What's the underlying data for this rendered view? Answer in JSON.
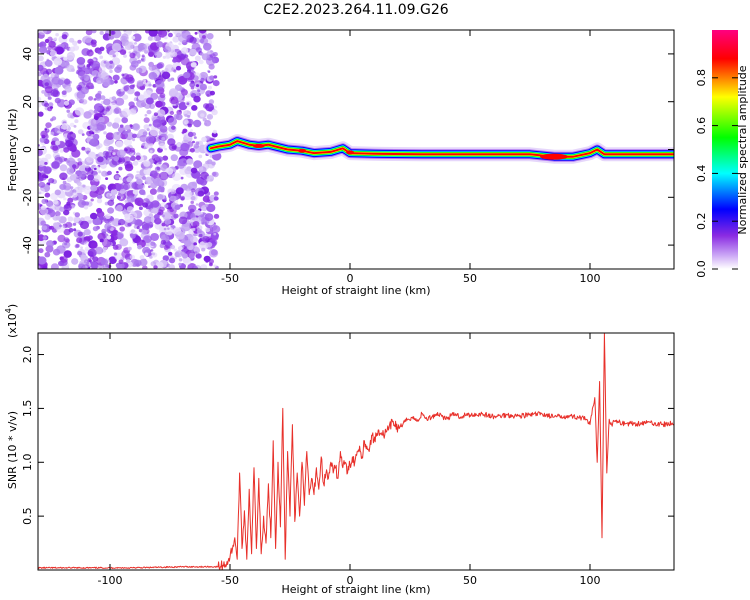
{
  "title": "C2E2.2023.264.11.09.G26",
  "chart_data": [
    {
      "type": "heatmap",
      "xlabel": "Height of straight line (km)",
      "ylabel": "Frequency (Hz)",
      "xlim": [
        -130,
        135
      ],
      "ylim": [
        -50,
        50
      ],
      "xticks": [
        -100,
        -50,
        0,
        50,
        100
      ],
      "xtick_labels": [
        "-100",
        "-50",
        "0",
        "50",
        "100"
      ],
      "yticks": [
        -40,
        -20,
        0,
        20,
        40
      ],
      "ytick_labels": [
        "-40",
        "-20",
        "0",
        "20",
        "40"
      ],
      "colorbar": {
        "label": "Normalized spectral amplitude",
        "range": [
          0,
          1
        ],
        "ticks": [
          0.0,
          0.2,
          0.4,
          0.6,
          0.8
        ],
        "tick_labels": [
          "0.0",
          "0.2",
          "0.4",
          "0.6",
          "0.8"
        ],
        "colormap": [
          "#ffffff",
          "#8a2be2",
          "#0000ff",
          "#00ffff",
          "#00ff00",
          "#ffff00",
          "#ff0000",
          "#ff0080"
        ]
      },
      "noise_region": {
        "x_range": [
          -130,
          -58
        ],
        "freq_range": [
          -50,
          50
        ],
        "amplitude": 0.1
      },
      "signal_line": [
        {
          "x": -58,
          "f": 0.5
        },
        {
          "x": -55,
          "f": 1.2
        },
        {
          "x": -50,
          "f": 2.0
        },
        {
          "x": -47,
          "f": 3.5
        },
        {
          "x": -42,
          "f": 2.0
        },
        {
          "x": -38,
          "f": 1.5
        },
        {
          "x": -34,
          "f": 2.0
        },
        {
          "x": -30,
          "f": 1.0
        },
        {
          "x": -26,
          "f": 0.0
        },
        {
          "x": -20,
          "f": -0.5
        },
        {
          "x": -15,
          "f": -1.5
        },
        {
          "x": -8,
          "f": -1.0
        },
        {
          "x": -3,
          "f": 0.5
        },
        {
          "x": 0,
          "f": -1.5
        },
        {
          "x": 10,
          "f": -1.8
        },
        {
          "x": 30,
          "f": -2.0
        },
        {
          "x": 60,
          "f": -2.0
        },
        {
          "x": 75,
          "f": -2.0
        },
        {
          "x": 85,
          "f": -3.0
        },
        {
          "x": 93,
          "f": -3.0
        },
        {
          "x": 100,
          "f": -1.5
        },
        {
          "x": 103,
          "f": 0.0
        },
        {
          "x": 106,
          "f": -2.0
        },
        {
          "x": 120,
          "f": -2.0
        },
        {
          "x": 135,
          "f": -2.0
        }
      ]
    },
    {
      "type": "line",
      "xlabel": "Height of straight line (km)",
      "ylabel": "SNR (10 * v/v)",
      "ylabel_scale": "(x10",
      "ylabel_scale_exp": "4",
      "ylabel_scale_close": ")",
      "xlim": [
        -130,
        135
      ],
      "ylim": [
        0,
        2.2
      ],
      "xticks": [
        -100,
        -50,
        0,
        50,
        100
      ],
      "xtick_labels": [
        "-100",
        "-50",
        "0",
        "50",
        "100"
      ],
      "yticks": [
        0.5,
        1.0,
        1.5,
        2.0
      ],
      "ytick_labels": [
        "0.5",
        "1.0",
        "1.5",
        "2.0"
      ],
      "color": "#e8302a",
      "series": [
        {
          "x": [
            -130,
            -110,
            -90,
            -70,
            -55,
            -52,
            -50,
            -48,
            -47,
            -46,
            -45,
            -44,
            -43,
            -42,
            -41,
            -40,
            -39,
            -38,
            -37,
            -36,
            -35,
            -34,
            -33,
            -32,
            -31,
            -30,
            -29,
            -28,
            -27,
            -26,
            -25,
            -24,
            -23,
            -22,
            -21,
            -20,
            -19,
            -18,
            -17,
            -16,
            -15,
            -14,
            -13,
            -12,
            -11,
            -10,
            -9,
            -8,
            -7,
            -6,
            -5,
            -4,
            -3,
            -2,
            -1,
            0,
            1,
            2,
            3,
            4,
            5,
            6,
            7,
            8,
            9,
            10,
            12,
            14,
            16,
            18,
            20,
            22,
            24,
            26,
            28,
            30,
            32,
            34,
            36,
            38,
            40,
            42,
            44,
            46,
            48,
            50,
            55,
            60,
            65,
            70,
            75,
            80,
            85,
            90,
            95,
            98,
            100,
            102,
            103,
            104,
            105,
            106,
            107,
            108,
            109,
            110,
            112,
            115,
            120,
            125,
            130,
            135
          ],
          "y": [
            0.02,
            0.02,
            0.02,
            0.03,
            0.03,
            0.05,
            0.12,
            0.3,
            0.1,
            0.9,
            0.2,
            0.55,
            0.1,
            0.75,
            0.15,
            0.95,
            0.2,
            0.85,
            0.15,
            0.5,
            0.25,
            0.8,
            0.3,
            1.2,
            0.2,
            1.0,
            0.4,
            1.5,
            0.1,
            1.1,
            0.5,
            1.35,
            0.45,
            0.9,
            0.5,
            1.0,
            0.6,
            1.1,
            0.7,
            0.85,
            0.7,
            0.95,
            0.75,
            1.05,
            0.8,
            0.9,
            0.85,
            1.0,
            0.9,
            0.95,
            0.85,
            1.1,
            0.95,
            1.0,
            0.9,
            0.98,
            1.05,
            1.0,
            1.1,
            1.15,
            1.05,
            1.2,
            1.15,
            1.1,
            1.25,
            1.2,
            1.3,
            1.25,
            1.3,
            1.38,
            1.32,
            1.35,
            1.4,
            1.42,
            1.38,
            1.45,
            1.4,
            1.42,
            1.45,
            1.44,
            1.4,
            1.43,
            1.45,
            1.42,
            1.44,
            1.44,
            1.45,
            1.42,
            1.44,
            1.43,
            1.44,
            1.45,
            1.42,
            1.43,
            1.42,
            1.4,
            1.35,
            1.6,
            1.0,
            1.75,
            0.3,
            2.2,
            0.9,
            1.4,
            1.35,
            1.38,
            1.37,
            1.36,
            1.36,
            1.37,
            1.35,
            1.36
          ]
        }
      ]
    }
  ]
}
